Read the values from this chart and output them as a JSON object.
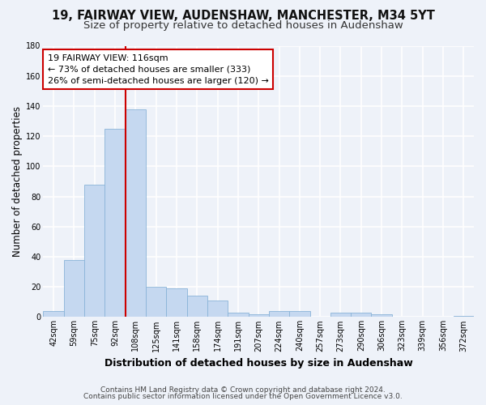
{
  "title1": "19, FAIRWAY VIEW, AUDENSHAW, MANCHESTER, M34 5YT",
  "title2": "Size of property relative to detached houses in Audenshaw",
  "xlabel": "Distribution of detached houses by size in Audenshaw",
  "ylabel": "Number of detached properties",
  "categories": [
    "42sqm",
    "59sqm",
    "75sqm",
    "92sqm",
    "108sqm",
    "125sqm",
    "141sqm",
    "158sqm",
    "174sqm",
    "191sqm",
    "207sqm",
    "224sqm",
    "240sqm",
    "257sqm",
    "273sqm",
    "290sqm",
    "306sqm",
    "323sqm",
    "339sqm",
    "356sqm",
    "372sqm"
  ],
  "values": [
    4,
    38,
    88,
    125,
    138,
    20,
    19,
    14,
    11,
    3,
    2,
    4,
    4,
    0,
    3,
    3,
    2,
    0,
    0,
    0,
    1
  ],
  "bar_color": "#c5d8f0",
  "bar_edge_color": "#8ab4d8",
  "vline_color": "#cc0000",
  "annotation_line1": "19 FAIRWAY VIEW: 116sqm",
  "annotation_line2": "← 73% of detached houses are smaller (333)",
  "annotation_line3": "26% of semi-detached houses are larger (120) →",
  "annotation_box_facecolor": "#ffffff",
  "annotation_box_edgecolor": "#cc0000",
  "ylim": [
    0,
    180
  ],
  "yticks": [
    0,
    20,
    40,
    60,
    80,
    100,
    120,
    140,
    160,
    180
  ],
  "footnote1": "Contains HM Land Registry data © Crown copyright and database right 2024.",
  "footnote2": "Contains public sector information licensed under the Open Government Licence v3.0.",
  "bg_color": "#eef2f9",
  "grid_color": "#ffffff",
  "title_fontsize": 10.5,
  "subtitle_fontsize": 9.5,
  "ylabel_fontsize": 8.5,
  "xlabel_fontsize": 9,
  "tick_fontsize": 7,
  "annotation_fontsize": 8,
  "footnote_fontsize": 6.5,
  "vline_bin_index": 4,
  "fig_width": 6.0,
  "fig_height": 5.0,
  "dpi": 100
}
